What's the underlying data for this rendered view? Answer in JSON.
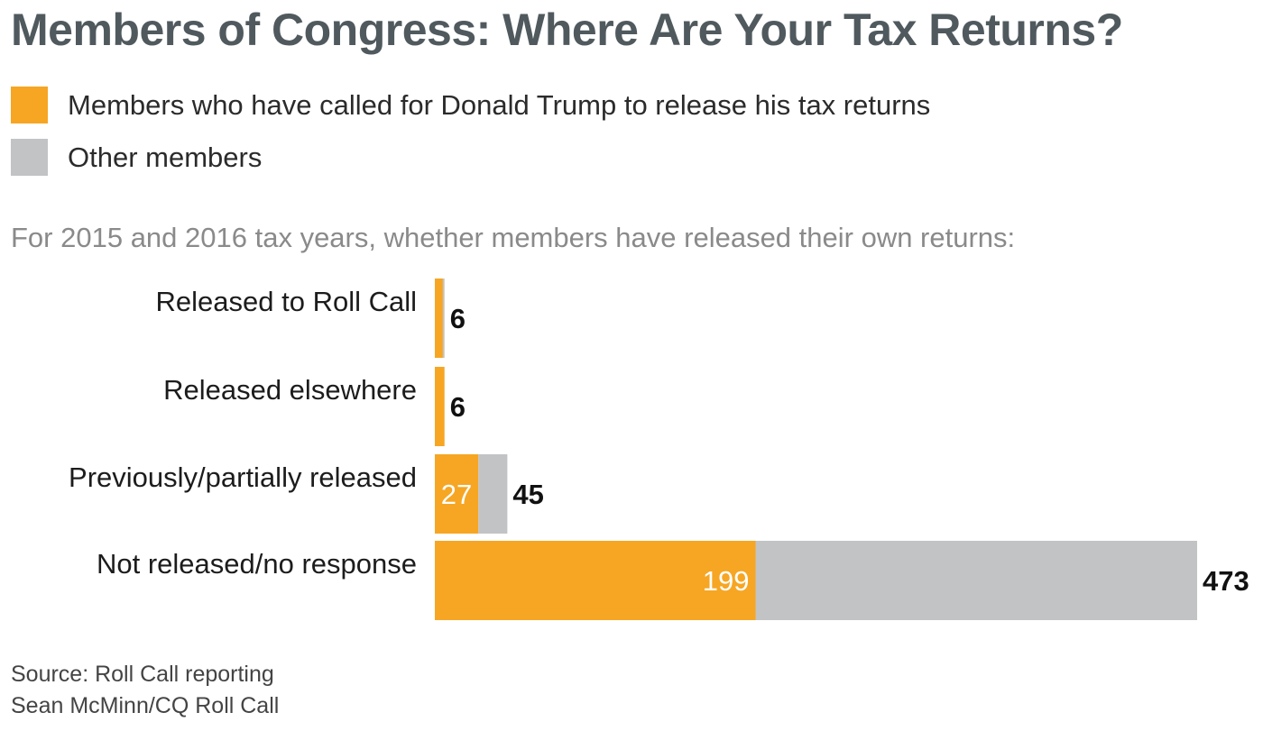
{
  "title": "Members of Congress: Where Are Your Tax Returns?",
  "legend": [
    {
      "label": "Members who have called for Donald Trump to release his tax returns",
      "color": "#f6a623"
    },
    {
      "label": "Other members",
      "color": "#c2c3c5"
    }
  ],
  "subtitle": "For 2015 and 2016 tax years, whether members have released their own returns:",
  "chart_data": {
    "type": "bar",
    "orientation": "horizontal",
    "stacked": true,
    "categories": [
      "Released to Roll Call",
      "Released elsewhere",
      "Previously/partially released",
      "Not released/no response"
    ],
    "series": [
      {
        "name": "Members who have called for Donald Trump to release his tax returns",
        "color": "#f6a623",
        "values": [
          5,
          6,
          27,
          199
        ]
      },
      {
        "name": "Other members",
        "color": "#c2c3c5",
        "values": [
          1,
          0,
          18,
          274
        ]
      }
    ],
    "totals": [
      6,
      6,
      45,
      473
    ],
    "inside_labels": [
      "",
      "",
      "27",
      "199"
    ],
    "xlim": [
      0,
      473
    ]
  },
  "footer": {
    "source": "Source: Roll Call reporting",
    "credit": "Sean McMinn/CQ Roll Call"
  }
}
